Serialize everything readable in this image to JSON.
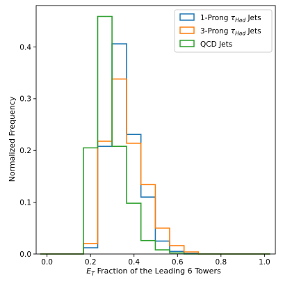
{
  "chart_data": {
    "type": "step",
    "xlabel_pre": "E",
    "xlabel_sub": "T",
    "xlabel_post": " Fraction of the Leading 6 Towers",
    "ylabel": "Normalized Frequency",
    "xlim": [
      -0.05,
      1.05
    ],
    "ylim": [
      0.0,
      0.48
    ],
    "xticks": [
      0.0,
      0.2,
      0.4,
      0.6,
      0.8,
      1.0
    ],
    "xtick_labels": [
      "0.0",
      "0.2",
      "0.4",
      "0.6",
      "0.8",
      "1.0"
    ],
    "yticks": [
      0.0,
      0.1,
      0.2,
      0.3,
      0.4
    ],
    "ytick_labels": [
      "0.0",
      "0.1",
      "0.2",
      "0.3",
      "0.4"
    ],
    "grid": false,
    "legend_position": "top-right",
    "bin_edges": [
      -0.031,
      0.035,
      0.101,
      0.167,
      0.233,
      0.299,
      0.366,
      0.432,
      0.498,
      0.564,
      0.63,
      0.696,
      0.762,
      0.828,
      0.894,
      0.96,
      1.026
    ],
    "series": [
      {
        "name_pre": "1-Prong ",
        "name_tau": "τ",
        "name_sub": "Had",
        "name_post": " Jets",
        "color": "#1f77b4",
        "values": [
          0,
          0,
          0,
          0.012,
          0.208,
          0.406,
          0.231,
          0.11,
          0.025,
          0.005,
          0.001,
          0,
          0,
          0,
          0,
          0
        ]
      },
      {
        "name_pre": "3-Prong ",
        "name_tau": "τ",
        "name_sub": "Had",
        "name_post": " Jets",
        "color": "#ff7f0e",
        "values": [
          0,
          0,
          0,
          0.02,
          0.218,
          0.338,
          0.214,
          0.134,
          0.05,
          0.016,
          0.004,
          0,
          0,
          0,
          0,
          0
        ]
      },
      {
        "name_pre": "QCD Jets",
        "name_tau": "",
        "name_sub": "",
        "name_post": "",
        "color": "#2ca02c",
        "values": [
          0,
          0,
          0,
          0.205,
          0.459,
          0.208,
          0.098,
          0.026,
          0.008,
          0.002,
          0,
          0,
          0,
          0,
          0,
          0
        ]
      }
    ]
  }
}
